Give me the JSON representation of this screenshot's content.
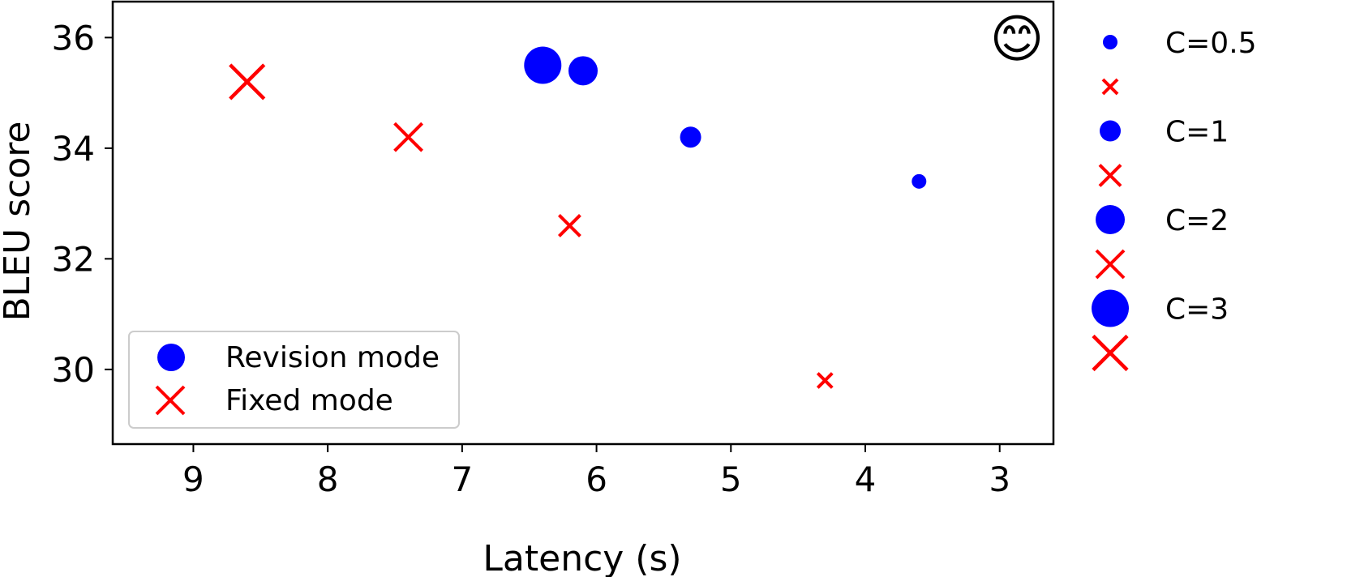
{
  "chart_data": {
    "type": "scatter",
    "xlabel": "Latency (s)",
    "ylabel": "BLEU score",
    "xlim": [
      9.6,
      2.6
    ],
    "ylim": [
      28.65,
      36.65
    ],
    "x_inverted": true,
    "x_ticks": [
      "9",
      "8",
      "7",
      "6",
      "5",
      "4",
      "3"
    ],
    "y_ticks": [
      "30",
      "32",
      "34",
      "36"
    ],
    "grid": false,
    "series": [
      {
        "name": "Revision mode",
        "marker": "circle",
        "color": "#0000ff",
        "points": [
          {
            "x": 6.4,
            "y": 35.5,
            "C": 3
          },
          {
            "x": 6.1,
            "y": 35.4,
            "C": 2
          },
          {
            "x": 5.3,
            "y": 34.2,
            "C": 1
          },
          {
            "x": 3.6,
            "y": 33.4,
            "C": 0.5
          }
        ]
      },
      {
        "name": "Fixed mode",
        "marker": "x",
        "color": "#ff0000",
        "points": [
          {
            "x": 8.6,
            "y": 35.2,
            "C": 3
          },
          {
            "x": 7.4,
            "y": 34.2,
            "C": 2
          },
          {
            "x": 6.2,
            "y": 32.6,
            "C": 1
          },
          {
            "x": 4.3,
            "y": 29.8,
            "C": 0.5
          }
        ]
      }
    ],
    "legend_mode": {
      "placement": "lower-left",
      "entries": [
        "Revision mode",
        "Fixed mode"
      ]
    },
    "legend_size": {
      "placement": "outside-right",
      "entries": [
        {
          "label": "C=0.5",
          "C": 0.5
        },
        {
          "label": "C=1",
          "C": 1
        },
        {
          "label": "C=2",
          "C": 2
        },
        {
          "label": "C=3",
          "C": 3
        }
      ]
    },
    "annotation": {
      "glyph": "😊",
      "icon": "smiley-face-icon",
      "placement": "top-right"
    }
  }
}
